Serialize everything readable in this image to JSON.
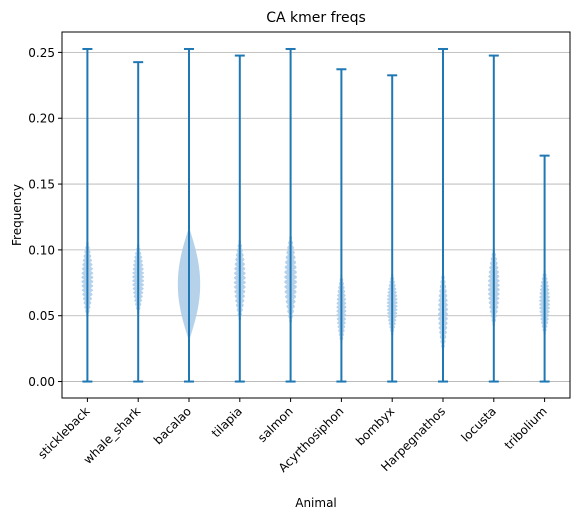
{
  "chart_data": {
    "type": "violin",
    "title": "CA kmer freqs",
    "xlabel": "Animal",
    "ylabel": "Frequency",
    "ylim": [
      -0.0125,
      0.2655
    ],
    "yticks": [
      0.0,
      0.05,
      0.1,
      0.15,
      0.2,
      0.25
    ],
    "ytick_labels": [
      "0.00",
      "0.05",
      "0.10",
      "0.15",
      "0.20",
      "0.25"
    ],
    "grid": "horizontal",
    "violin_color": "#aecde8",
    "line_color": "#1f77b4",
    "categories": [
      "stickleback",
      "whale_shark",
      "bacalao",
      "tilapia",
      "salmon",
      "Acyrthosiphon",
      "bombyx",
      "Harpegnathos",
      "locusta",
      "tribolium"
    ],
    "violins": [
      {
        "name": "stickleback",
        "min": 0.0,
        "max": 0.2526,
        "median": 0.077,
        "kde_low": 0.045,
        "kde_high": 0.11,
        "max_width": 0.12,
        "jagged": true
      },
      {
        "name": "whale_shark",
        "min": 0.0,
        "max": 0.2426,
        "median": 0.078,
        "kde_low": 0.048,
        "kde_high": 0.108,
        "max_width": 0.12,
        "jagged": true
      },
      {
        "name": "bacalao",
        "min": 0.0,
        "max": 0.2526,
        "median": 0.075,
        "kde_low": 0.03,
        "kde_high": 0.118,
        "max_width": 0.22,
        "jagged": false
      },
      {
        "name": "tilapia",
        "min": 0.0,
        "max": 0.2476,
        "median": 0.078,
        "kde_low": 0.042,
        "kde_high": 0.112,
        "max_width": 0.12,
        "jagged": true
      },
      {
        "name": "salmon",
        "min": 0.0,
        "max": 0.2526,
        "median": 0.077,
        "kde_low": 0.04,
        "kde_high": 0.115,
        "max_width": 0.13,
        "jagged": true
      },
      {
        "name": "Acyrthosiphon",
        "min": 0.0,
        "max": 0.2372,
        "median": 0.05,
        "kde_low": 0.025,
        "kde_high": 0.085,
        "max_width": 0.1,
        "jagged": true
      },
      {
        "name": "bombyx",
        "min": 0.0,
        "max": 0.2326,
        "median": 0.06,
        "kde_low": 0.032,
        "kde_high": 0.085,
        "max_width": 0.11,
        "jagged": true
      },
      {
        "name": "Harpegnathos",
        "min": 0.0,
        "max": 0.2526,
        "median": 0.055,
        "kde_low": 0.018,
        "kde_high": 0.088,
        "max_width": 0.1,
        "jagged": true
      },
      {
        "name": "locusta",
        "min": 0.0,
        "max": 0.2476,
        "median": 0.069,
        "kde_low": 0.038,
        "kde_high": 0.105,
        "max_width": 0.12,
        "jagged": true
      },
      {
        "name": "tribolium",
        "min": 0.0,
        "max": 0.1716,
        "median": 0.058,
        "kde_low": 0.032,
        "kde_high": 0.088,
        "max_width": 0.11,
        "jagged": true
      }
    ]
  }
}
